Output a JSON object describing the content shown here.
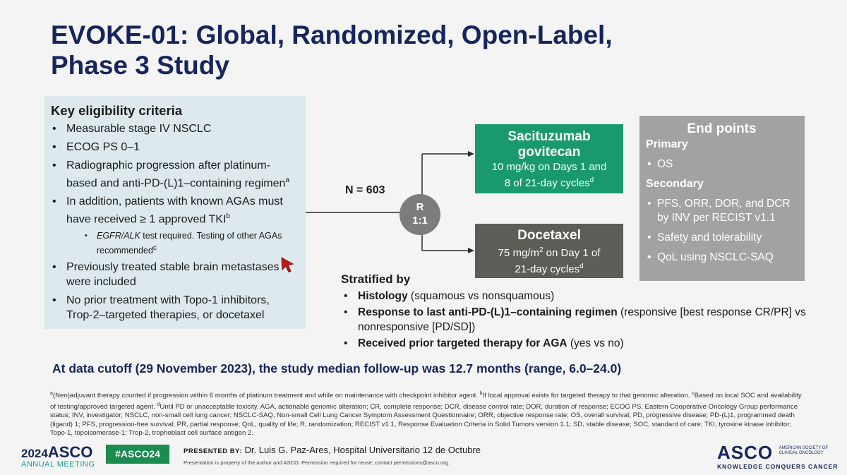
{
  "title": {
    "line1": "EVOKE-01: Global, Randomized, Open-Label,",
    "line2": "Phase 3 Study"
  },
  "eligibility": {
    "heading": "Key eligibility criteria",
    "items": [
      "Measurable stage IV NSCLC",
      "ECOG PS 0–1",
      "Radiographic progression after platinum-based and anti-PD-(L)1–containing regimen",
      "In addition, patients with known AGAs must have received ≥ 1 approved TKI",
      "Previously treated stable brain metastases were included",
      "No prior treatment with Topo-1 inhibitors, Trop-2–targeted therapies, or docetaxel"
    ],
    "item2_sup": "a",
    "item3_sup": "b",
    "sub_item_italic": "EGFR/ALK",
    "sub_item_rest": " test required. Testing of other AGAs recommended",
    "sub_item_sup": "c"
  },
  "design": {
    "n_label": "N = 603",
    "randomization_line1": "R",
    "randomization_line2": "1:1",
    "arm1": {
      "name_line1": "Sacituzumab",
      "name_line2": "govitecan",
      "dose_line1": "10 mg/kg on Days 1 and",
      "dose_line2": "8 of 21-day cycles",
      "dose_sup": "d"
    },
    "arm2": {
      "name": "Docetaxel",
      "dose_pre": "75 mg/m",
      "dose_exp": "2",
      "dose_post": " on Day 1 of",
      "dose_line2": "21-day cycles",
      "dose_sup": "d"
    }
  },
  "endpoints": {
    "heading": "End points",
    "primary_label": "Primary",
    "primary": [
      "OS"
    ],
    "secondary_label": "Secondary",
    "secondary": [
      "PFS, ORR, DOR, and DCR by INV per RECIST v1.1",
      "Safety and tolerability",
      "QoL using NSCLC-SAQ"
    ]
  },
  "stratification": {
    "heading": "Stratified by",
    "items": [
      {
        "bold": "Histology",
        "rest": " (squamous vs nonsquamous)"
      },
      {
        "bold": "Response to last anti-PD-(L)1–containing regimen",
        "rest": " (responsive [best response CR/PR] vs nonresponsive [PD/SD])"
      },
      {
        "bold": "Received prior targeted therapy for AGA",
        "rest": " (yes vs no)"
      }
    ]
  },
  "cutoff": "At data cutoff (29 November 2023), the study median follow-up was 12.7 months (range, 6.0–24.0)",
  "footnotes": {
    "a": "(Neo)adjuvant therapy counted if progression within 6 months of platinum treatment and while on maintenance with checkpoint inhibitor agent. ",
    "b": "If local approval exists for targeted therapy to that genomic alteration. ",
    "c": "Based on local SOC and availability of testing/approved targeted agent. ",
    "d": "Until PD or unacceptable toxicity. ",
    "abbrev": "AGA, actionable genomic alteration; CR, complete response; DCR, disease control rate; DOR, duration of response; ECOG PS, Eastern Cooperative Oncology Group performance status; INV, investigator; NSCLC, non-small cell lung cancer; NSCLC-SAQ, Non-small Cell Lung Cancer Symptom Assessment Questionnaire; ORR, objective response rate; OS, overall survival; PD, progressive disease; PD-(L)1, programmed death (ligand) 1; PFS, progression-free survival; PR, partial response; QoL, quality of life; R, randomization; RECIST v1.1, Response Evaluation Criteria in Solid Tumors version 1.1; SD, stable disease; SOC, standard of care; TKI, tyrosine kinase inhibitor; Topo-1, topoisomerase-1; Trop-2, trophoblast cell surface antigen 2."
  },
  "footer": {
    "year": "2024",
    "org": "ASCO",
    "meeting": "ANNUAL MEETING",
    "hashtag": "#ASCO24",
    "presented_by": "PRESENTED BY:",
    "presenter": "Dr. Luis G. Paz-Ares, Hospital Universitario 12 de Octubre",
    "permission": "Presentation is property of the author and ASCO. Permission required for reuse; contact permissions@asco.org.",
    "logo_text": "ASCO",
    "society_line1": "AMERICAN SOCIETY OF",
    "society_line2": "CLINICAL ONCOLOGY",
    "tagline": "KNOWLEDGE CONQUERS CANCER"
  },
  "colors": {
    "title": "#17255d",
    "arm1_bg": "#1a9a6c",
    "arm2_bg": "#5b5d56",
    "endpoints_bg": "#a2a2a2",
    "eligibility_bg": "#dde9ec",
    "cursor": "#c0191b"
  }
}
